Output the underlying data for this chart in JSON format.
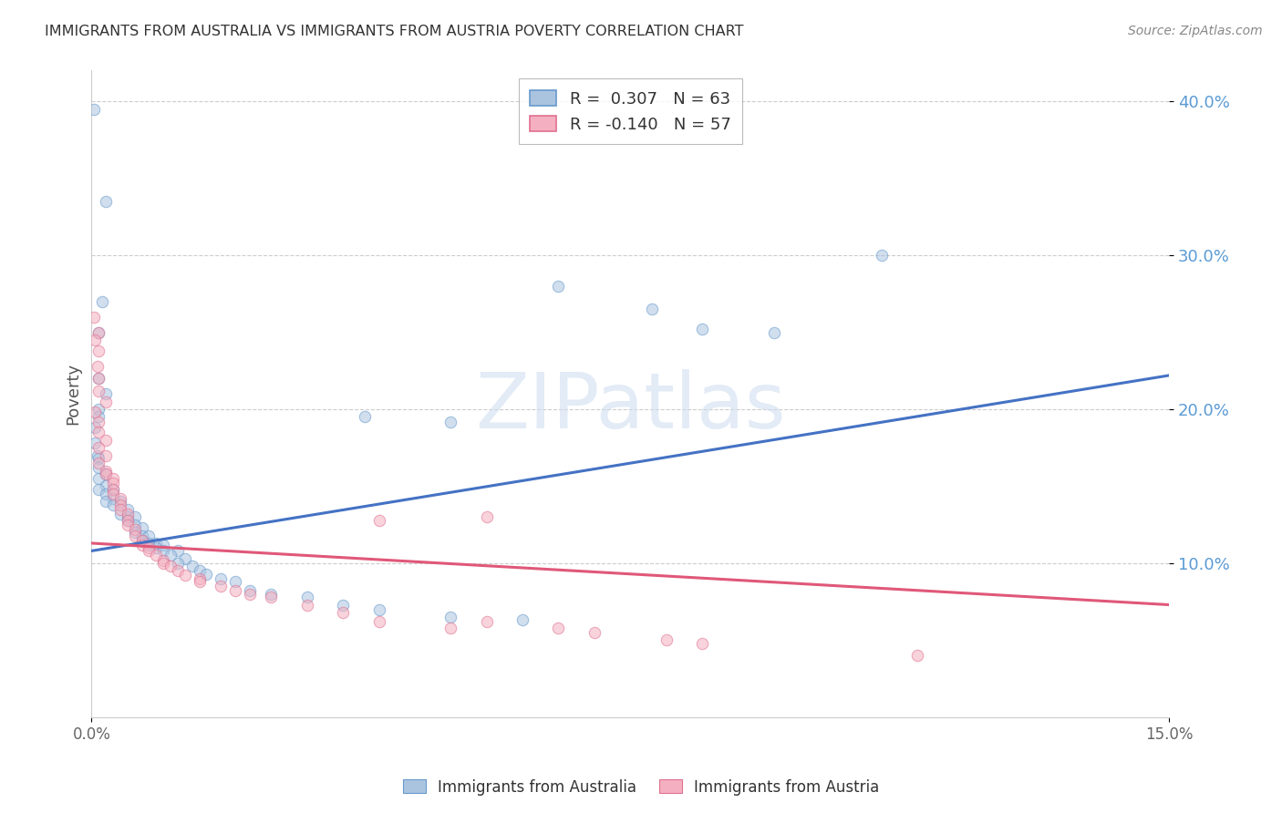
{
  "title": "IMMIGRANTS FROM AUSTRALIA VS IMMIGRANTS FROM AUSTRIA POVERTY CORRELATION CHART",
  "source": "Source: ZipAtlas.com",
  "ylabel": "Poverty",
  "watermark": "ZIPatlas",
  "legend_aus_R": 0.307,
  "legend_aus_N": 63,
  "legend_aut_R": -0.14,
  "legend_aut_N": 57,
  "australia_scatter": [
    [
      0.0003,
      0.395
    ],
    [
      0.002,
      0.335
    ],
    [
      0.0015,
      0.27
    ],
    [
      0.001,
      0.25
    ],
    [
      0.001,
      0.22
    ],
    [
      0.002,
      0.21
    ],
    [
      0.001,
      0.2
    ],
    [
      0.001,
      0.195
    ],
    [
      0.0005,
      0.188
    ],
    [
      0.0005,
      0.178
    ],
    [
      0.0008,
      0.17
    ],
    [
      0.001,
      0.168
    ],
    [
      0.001,
      0.162
    ],
    [
      0.002,
      0.158
    ],
    [
      0.001,
      0.155
    ],
    [
      0.002,
      0.15
    ],
    [
      0.001,
      0.148
    ],
    [
      0.003,
      0.148
    ],
    [
      0.002,
      0.145
    ],
    [
      0.003,
      0.142
    ],
    [
      0.002,
      0.14
    ],
    [
      0.004,
      0.14
    ],
    [
      0.003,
      0.138
    ],
    [
      0.005,
      0.135
    ],
    [
      0.004,
      0.132
    ],
    [
      0.005,
      0.13
    ],
    [
      0.006,
      0.13
    ],
    [
      0.005,
      0.128
    ],
    [
      0.006,
      0.125
    ],
    [
      0.007,
      0.123
    ],
    [
      0.006,
      0.12
    ],
    [
      0.007,
      0.118
    ],
    [
      0.008,
      0.118
    ],
    [
      0.007,
      0.115
    ],
    [
      0.008,
      0.113
    ],
    [
      0.009,
      0.113
    ],
    [
      0.008,
      0.112
    ],
    [
      0.01,
      0.112
    ],
    [
      0.009,
      0.11
    ],
    [
      0.01,
      0.108
    ],
    [
      0.012,
      0.108
    ],
    [
      0.011,
      0.105
    ],
    [
      0.013,
      0.103
    ],
    [
      0.012,
      0.1
    ],
    [
      0.014,
      0.098
    ],
    [
      0.015,
      0.095
    ],
    [
      0.016,
      0.093
    ],
    [
      0.018,
      0.09
    ],
    [
      0.02,
      0.088
    ],
    [
      0.022,
      0.082
    ],
    [
      0.025,
      0.08
    ],
    [
      0.03,
      0.078
    ],
    [
      0.035,
      0.073
    ],
    [
      0.04,
      0.07
    ],
    [
      0.05,
      0.065
    ],
    [
      0.06,
      0.063
    ],
    [
      0.038,
      0.195
    ],
    [
      0.05,
      0.192
    ],
    [
      0.065,
      0.28
    ],
    [
      0.078,
      0.265
    ],
    [
      0.085,
      0.252
    ],
    [
      0.095,
      0.25
    ],
    [
      0.11,
      0.3
    ]
  ],
  "austria_scatter": [
    [
      0.0003,
      0.26
    ],
    [
      0.001,
      0.25
    ],
    [
      0.0005,
      0.245
    ],
    [
      0.001,
      0.238
    ],
    [
      0.0008,
      0.228
    ],
    [
      0.001,
      0.22
    ],
    [
      0.001,
      0.212
    ],
    [
      0.002,
      0.205
    ],
    [
      0.0005,
      0.198
    ],
    [
      0.001,
      0.192
    ],
    [
      0.001,
      0.185
    ],
    [
      0.002,
      0.18
    ],
    [
      0.001,
      0.175
    ],
    [
      0.002,
      0.17
    ],
    [
      0.001,
      0.165
    ],
    [
      0.002,
      0.16
    ],
    [
      0.002,
      0.158
    ],
    [
      0.003,
      0.155
    ],
    [
      0.003,
      0.152
    ],
    [
      0.003,
      0.148
    ],
    [
      0.003,
      0.145
    ],
    [
      0.004,
      0.142
    ],
    [
      0.004,
      0.138
    ],
    [
      0.004,
      0.135
    ],
    [
      0.005,
      0.132
    ],
    [
      0.005,
      0.128
    ],
    [
      0.005,
      0.125
    ],
    [
      0.006,
      0.122
    ],
    [
      0.006,
      0.118
    ],
    [
      0.007,
      0.115
    ],
    [
      0.007,
      0.112
    ],
    [
      0.008,
      0.11
    ],
    [
      0.008,
      0.108
    ],
    [
      0.009,
      0.105
    ],
    [
      0.01,
      0.102
    ],
    [
      0.01,
      0.1
    ],
    [
      0.011,
      0.098
    ],
    [
      0.012,
      0.095
    ],
    [
      0.013,
      0.092
    ],
    [
      0.015,
      0.09
    ],
    [
      0.015,
      0.088
    ],
    [
      0.018,
      0.085
    ],
    [
      0.02,
      0.082
    ],
    [
      0.022,
      0.08
    ],
    [
      0.025,
      0.078
    ],
    [
      0.03,
      0.073
    ],
    [
      0.035,
      0.068
    ],
    [
      0.04,
      0.062
    ],
    [
      0.05,
      0.058
    ],
    [
      0.04,
      0.128
    ],
    [
      0.055,
      0.13
    ],
    [
      0.055,
      0.062
    ],
    [
      0.065,
      0.058
    ],
    [
      0.07,
      0.055
    ],
    [
      0.08,
      0.05
    ],
    [
      0.085,
      0.048
    ],
    [
      0.115,
      0.04
    ]
  ],
  "australia_trend_x": [
    0.0,
    0.15
  ],
  "australia_trend_y": [
    0.108,
    0.222
  ],
  "austria_trend_x": [
    0.0,
    0.15
  ],
  "austria_trend_y": [
    0.113,
    0.073
  ],
  "xmin": 0.0,
  "xmax": 0.15,
  "ymin": 0.0,
  "ymax": 0.42,
  "yticks": [
    0.1,
    0.2,
    0.3,
    0.4
  ],
  "ytick_labels": [
    "10.0%",
    "20.0%",
    "30.0%",
    "40.0%"
  ],
  "xtick_positions": [
    0.0,
    0.15
  ],
  "xtick_labels": [
    "0.0%",
    "15.0%"
  ],
  "background_color": "#ffffff",
  "grid_color": "#cccccc",
  "title_color": "#333333",
  "australia_color": "#aac4e0",
  "austria_color": "#f4b0c0",
  "australia_edge": "#6699cc",
  "austria_edge": "#e07090",
  "trend_blue": "#4472c4",
  "trend_pink": "#e05878",
  "scatter_size": 80,
  "scatter_alpha": 0.55,
  "ytick_color": "#5b9bd5",
  "source_text": "Source: ZipAtlas.com"
}
